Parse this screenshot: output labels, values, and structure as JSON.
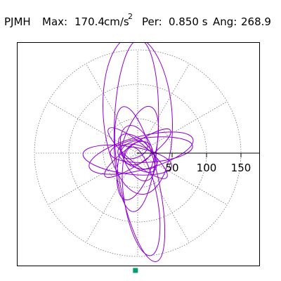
{
  "header": {
    "station": "PJMH",
    "max_label": "Max:",
    "max_value": "170.4",
    "max_unit_base": "cm/s",
    "max_unit_exp": "2",
    "per_label": "Per:",
    "per_value": "0.850 s",
    "ang_label": "Ang:",
    "ang_value": "268.9"
  },
  "chart_data": {
    "type": "scatter",
    "title": "",
    "xlabel": "",
    "ylabel": "",
    "polar": true,
    "rings": [
      50,
      100,
      150
    ],
    "radial_tick_labels": [
      "50",
      "100",
      "150"
    ],
    "spokes_deg": 30,
    "grid": true,
    "max_magnitude": 170.4,
    "max_angle_deg": 268.9,
    "colors": {
      "trace": "#8f00d6",
      "grid": "#777777",
      "axis": "#000000",
      "max_marker": "#009e73"
    },
    "series": [
      {
        "type": "trace",
        "loops": [
          {
            "cx": 5,
            "cy": 70,
            "rx": 24,
            "ry": 80,
            "rot": -10
          },
          {
            "cx": 3,
            "cy": 45,
            "rx": 28,
            "ry": 115,
            "rot": -12
          },
          {
            "cx": -2,
            "cy": -40,
            "rx": 32,
            "ry": 125,
            "rot": 2
          },
          {
            "cx": 0,
            "cy": -55,
            "rx": 50,
            "ry": 115,
            "rot": -4
          },
          {
            "cx": 5,
            "cy": 0,
            "rx": 78,
            "ry": 24,
            "rot": -15
          },
          {
            "cx": 0,
            "cy": 0,
            "rx": 55,
            "ry": 14,
            "rot": 40
          },
          {
            "cx": 0,
            "cy": 0,
            "rx": 58,
            "ry": 14,
            "rot": -35
          },
          {
            "cx": -15,
            "cy": 10,
            "rx": 65,
            "ry": 20,
            "rot": 8
          },
          {
            "cx": 20,
            "cy": -5,
            "rx": 60,
            "ry": 18,
            "rot": -5
          },
          {
            "cx": 0,
            "cy": 0,
            "rx": 42,
            "ry": 22,
            "rot": 70
          },
          {
            "cx": 0,
            "cy": 0,
            "rx": 25,
            "ry": 70,
            "rot": 15
          },
          {
            "cx": 0,
            "cy": 0,
            "rx": 18,
            "ry": 35,
            "rot": -45
          },
          {
            "cx": 0,
            "cy": 5,
            "rx": 30,
            "ry": 16,
            "rot": 20
          },
          {
            "cx": 0,
            "cy": 0,
            "rx": 15,
            "ry": 22,
            "rot": 60
          },
          {
            "cx": -5,
            "cy": -5,
            "rx": 20,
            "ry": 12,
            "rot": -20
          }
        ]
      }
    ]
  }
}
